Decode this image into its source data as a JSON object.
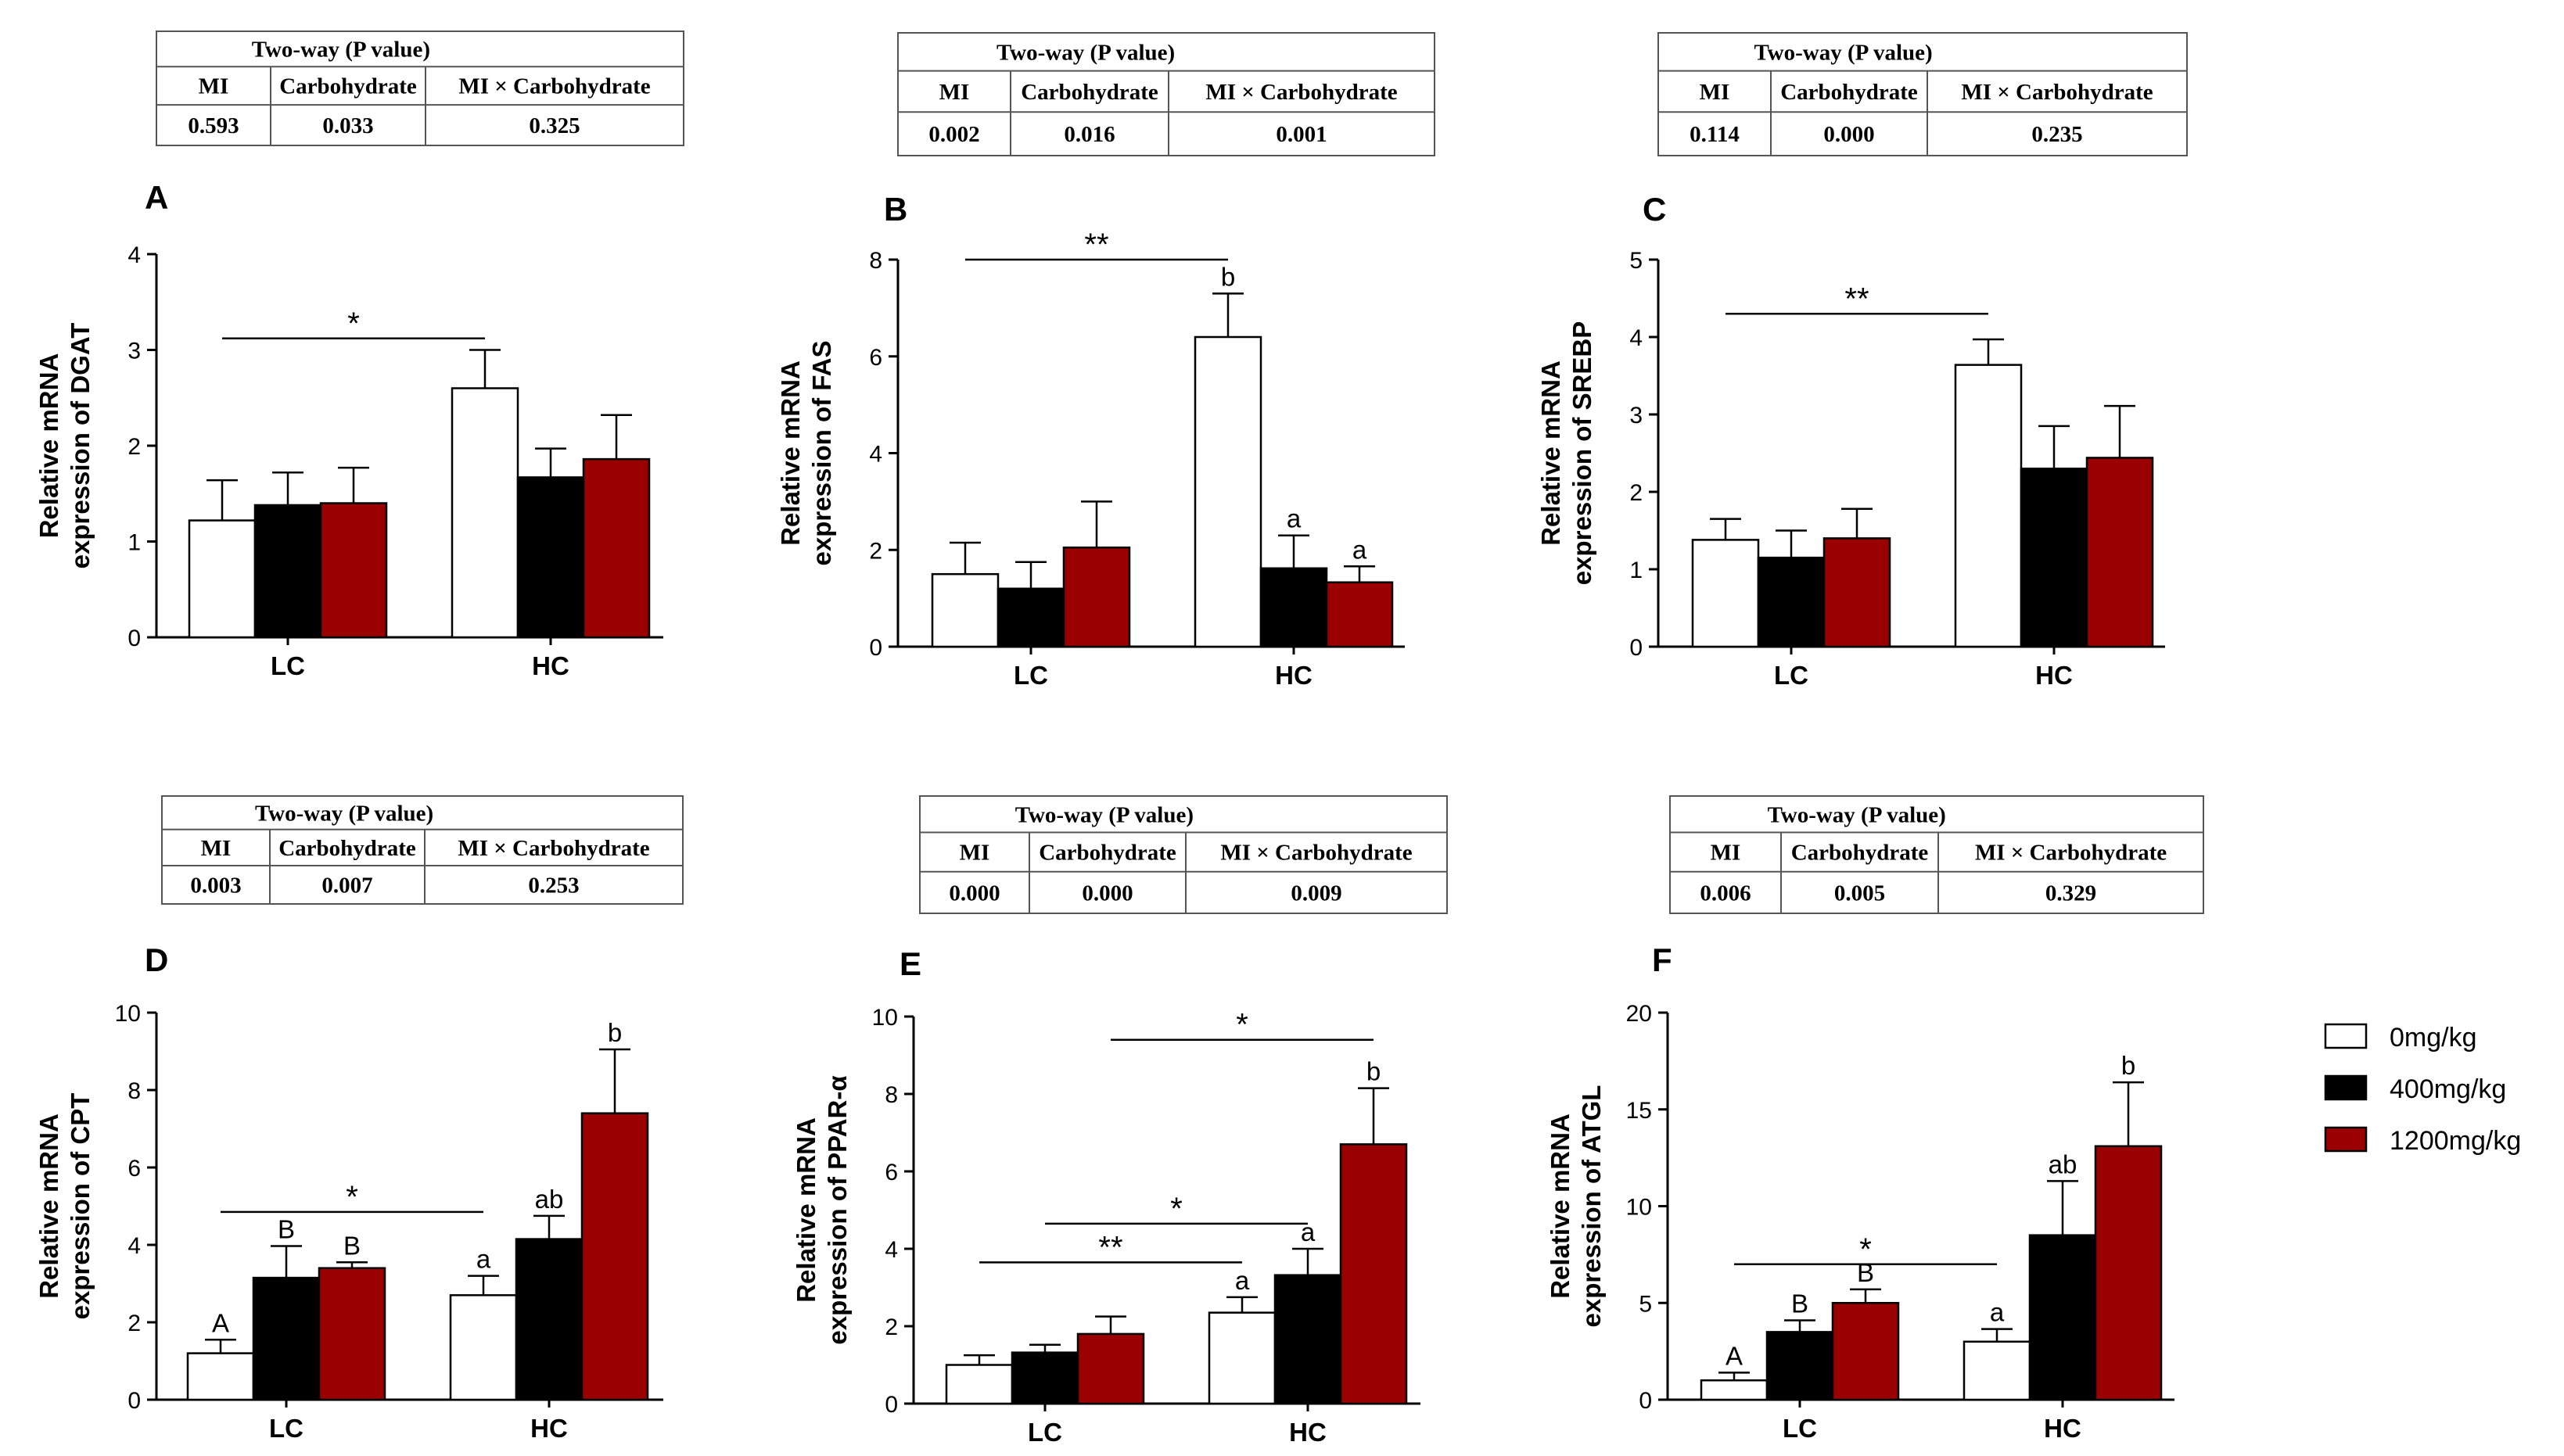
{
  "colors": {
    "c0": "#ffffff",
    "c400": "#000000",
    "c1200": "#9b0000"
  },
  "legend": {
    "items": [
      "0mg/kg",
      "400mg/kg",
      "1200mg/kg"
    ]
  },
  "pvalue_headers": {
    "title": "Two-way (P value)",
    "col1": "MI",
    "col2": "Carbohydrate",
    "col3": "MI × Carbohydrate"
  },
  "chart_data": [
    {
      "type": "bar",
      "panel": "A",
      "ylabel": [
        "Relative mRNA",
        "expression of DGAT"
      ],
      "ylim": [
        0,
        4
      ],
      "yticks": [
        0,
        1,
        2,
        3,
        4
      ],
      "categories": [
        "LC",
        "HC"
      ],
      "series": [
        {
          "name": "0mg/kg",
          "values": [
            1.22,
            2.6
          ],
          "errors": [
            0.42,
            0.4
          ],
          "letters": [
            "",
            ""
          ]
        },
        {
          "name": "400mg/kg",
          "values": [
            1.38,
            1.67
          ],
          "errors": [
            0.34,
            0.3
          ],
          "letters": [
            "",
            ""
          ]
        },
        {
          "name": "1200mg/kg",
          "values": [
            1.4,
            1.86
          ],
          "errors": [
            0.37,
            0.46
          ],
          "letters": [
            "",
            ""
          ]
        }
      ],
      "pvalues": [
        "0.593",
        "0.033",
        "0.325"
      ],
      "sig": [
        {
          "from": [
            0,
            0
          ],
          "to": [
            1,
            0
          ],
          "y": 3.12,
          "label": "*"
        }
      ]
    },
    {
      "type": "bar",
      "panel": "B",
      "ylabel": [
        "Relative mRNA",
        "expression of FAS"
      ],
      "ylim": [
        0,
        8
      ],
      "yticks": [
        0,
        2,
        4,
        6,
        8
      ],
      "categories": [
        "LC",
        "HC"
      ],
      "series": [
        {
          "name": "0mg/kg",
          "values": [
            1.5,
            6.4
          ],
          "errors": [
            0.65,
            0.9
          ],
          "letters": [
            "",
            "b"
          ]
        },
        {
          "name": "400mg/kg",
          "values": [
            1.2,
            1.62
          ],
          "errors": [
            0.55,
            0.68
          ],
          "letters": [
            "",
            "a"
          ]
        },
        {
          "name": "1200mg/kg",
          "values": [
            2.05,
            1.33
          ],
          "errors": [
            0.95,
            0.33
          ],
          "letters": [
            "",
            "a"
          ]
        }
      ],
      "pvalues": [
        "0.002",
        "0.016",
        "0.001"
      ],
      "sig": [
        {
          "from": [
            0,
            0
          ],
          "to": [
            1,
            0
          ],
          "y": 8.0,
          "label": "**"
        }
      ]
    },
    {
      "type": "bar",
      "panel": "C",
      "ylabel": [
        "Relative mRNA",
        "expression of SREBP"
      ],
      "ylim": [
        0,
        5
      ],
      "yticks": [
        0,
        1,
        2,
        3,
        4,
        5
      ],
      "categories": [
        "LC",
        "HC"
      ],
      "series": [
        {
          "name": "0mg/kg",
          "values": [
            1.38,
            3.64
          ],
          "errors": [
            0.27,
            0.33
          ],
          "letters": [
            "",
            ""
          ]
        },
        {
          "name": "400mg/kg",
          "values": [
            1.15,
            2.3
          ],
          "errors": [
            0.35,
            0.55
          ],
          "letters": [
            "",
            ""
          ]
        },
        {
          "name": "1200mg/kg",
          "values": [
            1.4,
            2.44
          ],
          "errors": [
            0.38,
            0.67
          ],
          "letters": [
            "",
            ""
          ]
        }
      ],
      "pvalues": [
        "0.114",
        "0.000",
        "0.235"
      ],
      "sig": [
        {
          "from": [
            0,
            0
          ],
          "to": [
            1,
            0
          ],
          "y": 4.3,
          "label": "**"
        }
      ]
    },
    {
      "type": "bar",
      "panel": "D",
      "ylabel": [
        "Relative mRNA",
        "expression of CPT"
      ],
      "ylim": [
        0,
        10
      ],
      "yticks": [
        0,
        2,
        4,
        6,
        8,
        10
      ],
      "categories": [
        "LC",
        "HC"
      ],
      "series": [
        {
          "name": "0mg/kg",
          "values": [
            1.2,
            2.7
          ],
          "errors": [
            0.35,
            0.5
          ],
          "letters": [
            "A",
            "a"
          ]
        },
        {
          "name": "400mg/kg",
          "values": [
            3.15,
            4.15
          ],
          "errors": [
            0.82,
            0.6
          ],
          "letters": [
            "B",
            "ab"
          ]
        },
        {
          "name": "1200mg/kg",
          "values": [
            3.4,
            7.4
          ],
          "errors": [
            0.15,
            1.65
          ],
          "letters": [
            "B",
            "b"
          ]
        }
      ],
      "pvalues": [
        "0.003",
        "0.007",
        "0.253"
      ],
      "sig": [
        {
          "from": [
            0,
            0
          ],
          "to": [
            1,
            0
          ],
          "y": 4.85,
          "label": "*"
        }
      ]
    },
    {
      "type": "bar",
      "panel": "E",
      "ylabel": [
        "Relative mRNA",
        "expression of PPAR-α"
      ],
      "ylim": [
        0,
        10
      ],
      "yticks": [
        0,
        2,
        4,
        6,
        8,
        10
      ],
      "categories": [
        "LC",
        "HC"
      ],
      "series": [
        {
          "name": "0mg/kg",
          "values": [
            1.0,
            2.35
          ],
          "errors": [
            0.25,
            0.4
          ],
          "letters": [
            "",
            "a"
          ]
        },
        {
          "name": "400mg/kg",
          "values": [
            1.32,
            3.32
          ],
          "errors": [
            0.2,
            0.68
          ],
          "letters": [
            "",
            "a"
          ]
        },
        {
          "name": "1200mg/kg",
          "values": [
            1.8,
            6.7
          ],
          "errors": [
            0.45,
            1.45
          ],
          "letters": [
            "",
            "b"
          ]
        }
      ],
      "pvalues": [
        "0.000",
        "0.000",
        "0.009"
      ],
      "sig": [
        {
          "from": [
            0,
            0
          ],
          "to": [
            1,
            0
          ],
          "y": 3.65,
          "label": "**"
        },
        {
          "from": [
            0,
            1
          ],
          "to": [
            1,
            1
          ],
          "y": 4.65,
          "label": "*"
        },
        {
          "from": [
            0,
            2
          ],
          "to": [
            1,
            2
          ],
          "y": 9.4,
          "label": "*"
        }
      ]
    },
    {
      "type": "bar",
      "panel": "F",
      "ylabel": [
        "Relative mRNA",
        "expression of ATGL"
      ],
      "ylim": [
        0,
        20
      ],
      "yticks": [
        0,
        5,
        10,
        15,
        20
      ],
      "categories": [
        "LC",
        "HC"
      ],
      "series": [
        {
          "name": "0mg/kg",
          "values": [
            1.0,
            3.0
          ],
          "errors": [
            0.4,
            0.65
          ],
          "letters": [
            "A",
            "a"
          ]
        },
        {
          "name": "400mg/kg",
          "values": [
            3.5,
            8.5
          ],
          "errors": [
            0.6,
            2.8
          ],
          "letters": [
            "B",
            "ab"
          ]
        },
        {
          "name": "1200mg/kg",
          "values": [
            5.0,
            13.1
          ],
          "errors": [
            0.7,
            3.3
          ],
          "letters": [
            "B",
            "b"
          ]
        }
      ],
      "pvalues": [
        "0.006",
        "0.005",
        "0.329"
      ],
      "sig": [
        {
          "from": [
            0,
            0
          ],
          "to": [
            1,
            0
          ],
          "y": 7.0,
          "label": "*"
        }
      ]
    }
  ]
}
